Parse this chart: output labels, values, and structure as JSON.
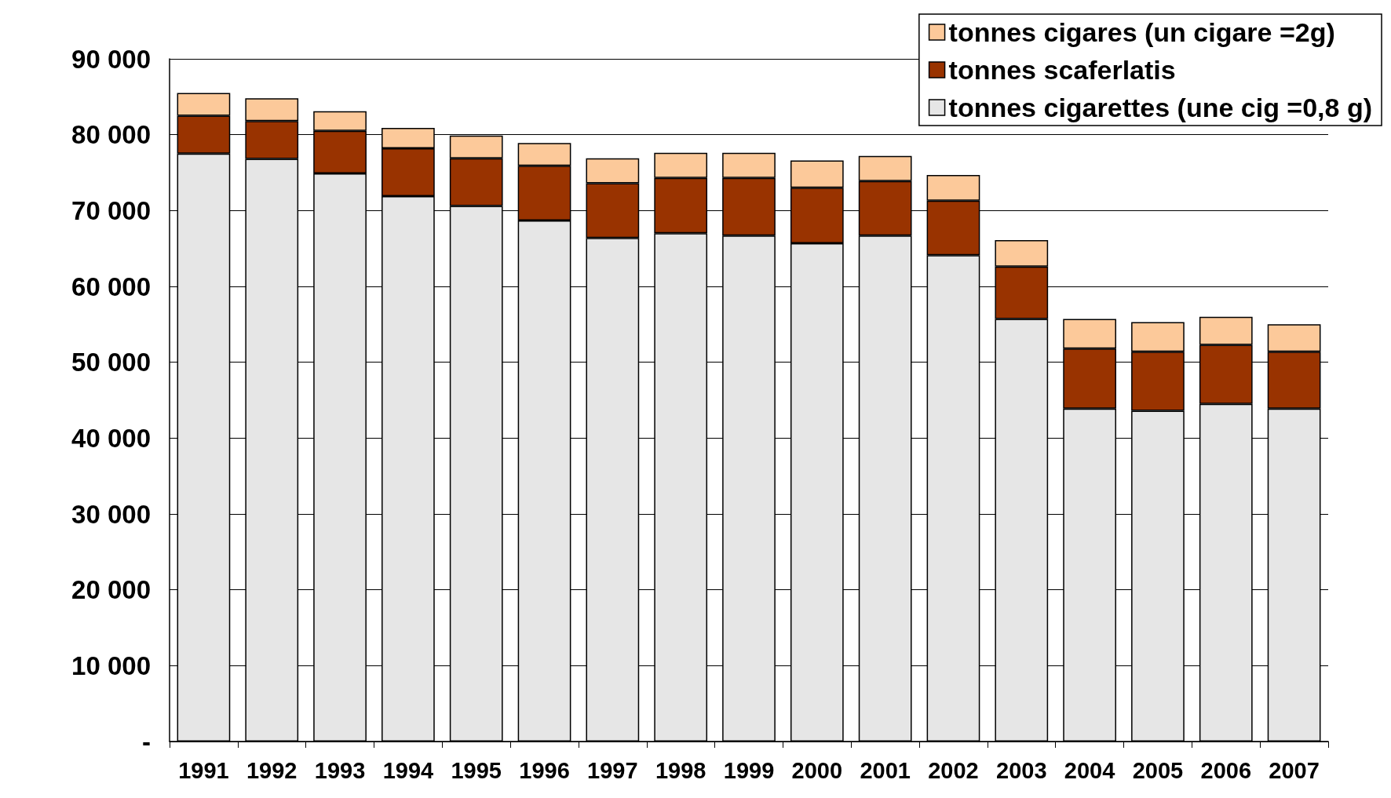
{
  "chart_data": {
    "type": "bar",
    "stacked": true,
    "categories": [
      "1991",
      "1992",
      "1993",
      "1994",
      "1995",
      "1996",
      "1997",
      "1998",
      "1999",
      "2000",
      "2001",
      "2002",
      "2003",
      "2004",
      "2005",
      "2006",
      "2007"
    ],
    "series": [
      {
        "name": "tonnes cigarettes (une cig =0,8 g)",
        "color": "#e6e6e6",
        "values": [
          77500,
          76800,
          74900,
          71900,
          70600,
          68700,
          66400,
          67000,
          66700,
          65700,
          66700,
          64100,
          55700,
          43900,
          43600,
          44500,
          43900
        ]
      },
      {
        "name": "tonnes scaferlatis",
        "color": "#993300",
        "values": [
          5000,
          5000,
          5600,
          6300,
          6300,
          7200,
          7200,
          7300,
          7600,
          7300,
          7200,
          7200,
          6900,
          7900,
          7800,
          7800,
          7500
        ]
      },
      {
        "name": "tonnes cigares (un cigare =2g)",
        "color": "#fcc99a",
        "values": [
          3000,
          3000,
          2600,
          2700,
          3000,
          3000,
          3300,
          3300,
          3300,
          3600,
          3300,
          3400,
          3500,
          3900,
          3900,
          3700,
          3600
        ]
      }
    ],
    "ylim": [
      0,
      90000
    ],
    "yticks": [
      {
        "value": 0,
        "label": "-"
      },
      {
        "value": 10000,
        "label": "10 000"
      },
      {
        "value": 20000,
        "label": "20 000"
      },
      {
        "value": 30000,
        "label": "30 000"
      },
      {
        "value": 40000,
        "label": "40 000"
      },
      {
        "value": 50000,
        "label": "50 000"
      },
      {
        "value": 60000,
        "label": "60 000"
      },
      {
        "value": 70000,
        "label": "70 000"
      },
      {
        "value": 80000,
        "label": "80 000"
      },
      {
        "value": 90000,
        "label": "90 000"
      }
    ],
    "grid": "y",
    "legend": "top right"
  }
}
